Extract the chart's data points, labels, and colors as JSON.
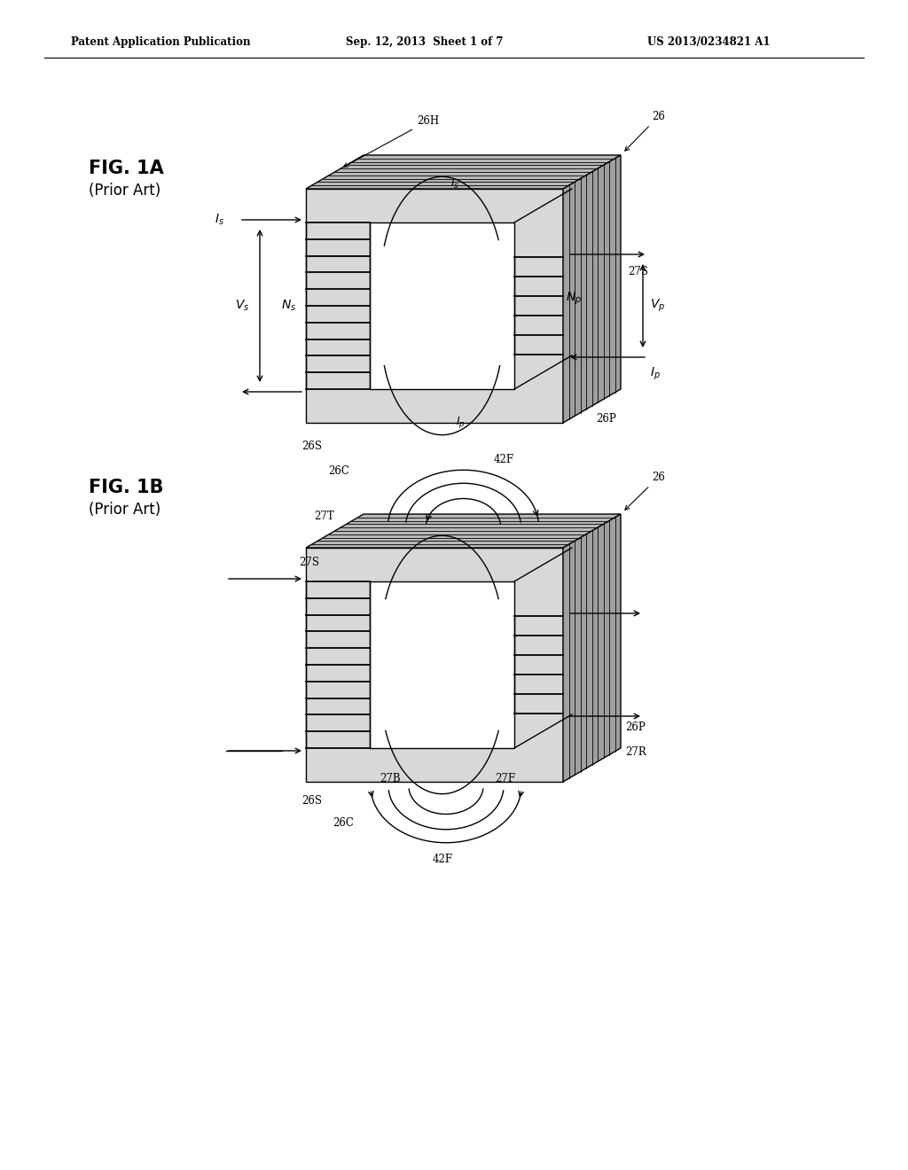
{
  "bg_color": "#ffffff",
  "header_text": "Patent Application Publication",
  "header_date": "Sep. 12, 2013  Sheet 1 of 7",
  "header_patent": "US 2013/0234821 A1",
  "line_color": "#000000",
  "line_width": 1.0,
  "fig1a_label": "FIG. 1A",
  "fig1a_sub": "(Prior Art)",
  "fig1b_label": "FIG. 1B",
  "fig1b_sub": "(Prior Art)",
  "gray_front": "#d8d8d8",
  "gray_top": "#b8b8b8",
  "gray_right": "#a0a0a0",
  "white": "#ffffff"
}
